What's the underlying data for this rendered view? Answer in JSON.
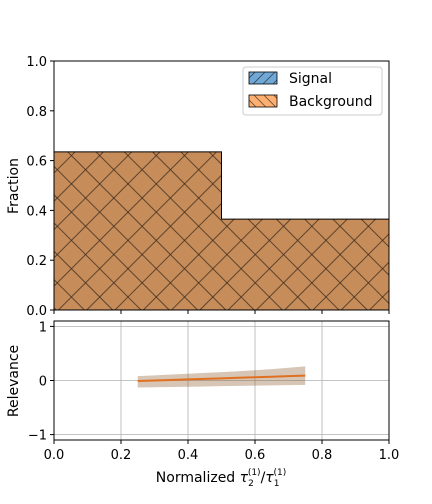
{
  "chart_data": [
    {
      "type": "histogram",
      "ylabel": "Fraction",
      "ylim": [
        0,
        1.0
      ],
      "xlim": [
        0,
        1.0
      ],
      "yticks": [
        0.0,
        0.2,
        0.4,
        0.6,
        0.8,
        1.0
      ],
      "ytick_labels": [
        "0.0",
        "0.2",
        "0.4",
        "0.6",
        "0.8",
        "1.0"
      ],
      "bin_edges": [
        0.0,
        0.5,
        1.0
      ],
      "series": [
        {
          "name": "Signal",
          "values": [
            0.635,
            0.365
          ],
          "color": "#1f77b4",
          "hatch": "/"
        },
        {
          "name": "Background",
          "values": [
            0.635,
            0.365
          ],
          "color": "#ff7f0e",
          "hatch": "\\"
        }
      ],
      "legend": "top-right",
      "grid": false
    },
    {
      "type": "line",
      "xlabel_main": "Normalized ",
      "xlabel_tau": "τ",
      "xlabel_num_sub": "2",
      "xlabel_num_sup": "(1)",
      "xlabel_slash": "/",
      "xlabel_den_sub": "1",
      "xlabel_den_sup": "(1)",
      "ylabel": "Relevance",
      "xlim": [
        0,
        1.0
      ],
      "ylim": [
        -1.1,
        1.1
      ],
      "xticks": [
        0.0,
        0.2,
        0.4,
        0.6,
        0.8,
        1.0
      ],
      "xtick_labels": [
        "0.0",
        "0.2",
        "0.4",
        "0.6",
        "0.8",
        "1.0"
      ],
      "yticks": [
        -1,
        0,
        1
      ],
      "ytick_labels": [
        "−1",
        "0",
        "1"
      ],
      "grid": true,
      "line_color": "#e07020",
      "band_color": "#8b5a2b",
      "x": [
        0.25,
        0.3,
        0.35,
        0.4,
        0.45,
        0.5,
        0.55,
        0.6,
        0.65,
        0.7,
        0.75
      ],
      "y": [
        -0.01,
        0.0,
        0.01,
        0.02,
        0.03,
        0.04,
        0.05,
        0.06,
        0.07,
        0.08,
        0.09
      ],
      "y_lower": [
        -0.13,
        -0.125,
        -0.12,
        -0.115,
        -0.11,
        -0.105,
        -0.1,
        -0.095,
        -0.09,
        -0.085,
        -0.08
      ],
      "y_upper": [
        0.08,
        0.095,
        0.11,
        0.125,
        0.14,
        0.155,
        0.17,
        0.19,
        0.21,
        0.235,
        0.26
      ]
    }
  ]
}
